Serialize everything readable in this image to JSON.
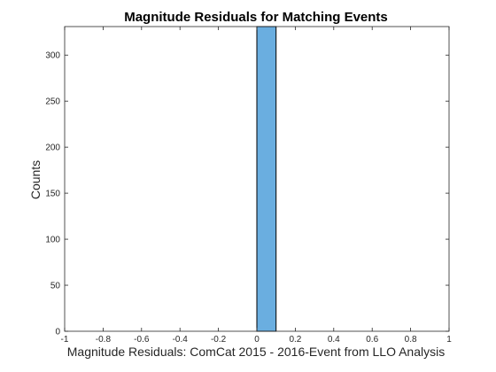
{
  "chart_data": {
    "type": "bar",
    "title": "Magnitude Residuals for Matching Events",
    "xlabel": "Magnitude Residuals: ComCat 2015 - 2016-Event from LLO Analysis",
    "ylabel": "Counts",
    "xlim": [
      -1,
      1
    ],
    "ylim": [
      0,
      331
    ],
    "xticks": [
      "-1",
      "-0.8",
      "-0.6",
      "-0.4",
      "-0.2",
      "0",
      "0.2",
      "0.4",
      "0.6",
      "0.8",
      "1"
    ],
    "yticks": [
      "0",
      "50",
      "100",
      "150",
      "200",
      "250",
      "300"
    ],
    "bins": [
      {
        "x0": 0.0,
        "x1": 0.1,
        "count": 331
      }
    ],
    "bar_color": "#6aaee0",
    "grid": false,
    "box": true
  }
}
